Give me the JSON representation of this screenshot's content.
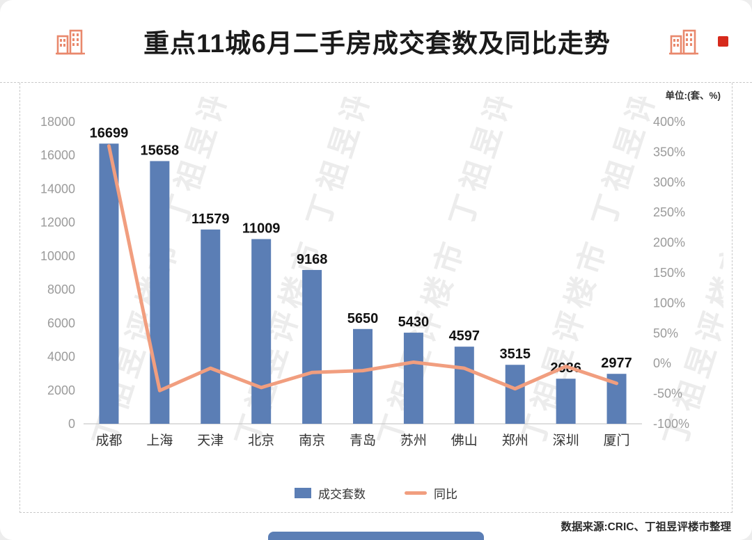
{
  "header": {
    "title_part1": "重点11城6月",
    "title_part2": "二手房成交套数及同比走势"
  },
  "chart": {
    "unit_label": "单位:(套、%)"
  },
  "legend": {
    "bar_label": "成交套数",
    "line_label": "同比"
  },
  "footer": {
    "source": "数据来源:CRIC、丁祖昱评楼市整理"
  },
  "watermark": {
    "text": "丁祖昱评楼市"
  },
  "colors": {
    "bar": "#5B7EB5",
    "line": "#F19E7F",
    "accent_red": "#D62A1C",
    "building_icon": "#E9886C",
    "axis_text": "#9B9B9B",
    "category_text": "#333333",
    "value_text": "#111111",
    "baseline": "#C9C9C9"
  },
  "chart_data": {
    "type": "bar+line combo",
    "title": "重点11城6月二手房成交套数及同比走势",
    "unit": "单位:(套、%)",
    "categories": [
      "成都",
      "上海",
      "天津",
      "北京",
      "南京",
      "青岛",
      "苏州",
      "佛山",
      "郑州",
      "深圳",
      "厦门"
    ],
    "series": [
      {
        "name": "成交套数",
        "type": "bar",
        "axis": "left",
        "values": [
          16699,
          15658,
          11579,
          11009,
          9168,
          5650,
          5430,
          4597,
          3515,
          2686,
          2977
        ]
      },
      {
        "name": "同比",
        "type": "line",
        "axis": "right",
        "unit": "%",
        "values": [
          360,
          -45,
          -8,
          -40,
          -15,
          -12,
          2,
          -8,
          -42,
          -5,
          -33
        ]
      }
    ],
    "left_axis": {
      "min": 0,
      "max": 18000,
      "step": 2000
    },
    "right_axis": {
      "min": -100,
      "max": 400,
      "step": 50,
      "suffix": "%"
    },
    "grid": false,
    "legend_position": "bottom",
    "bar_labels_shown": true,
    "source": "数据来源:CRIC、丁祖昱评楼市整理"
  }
}
